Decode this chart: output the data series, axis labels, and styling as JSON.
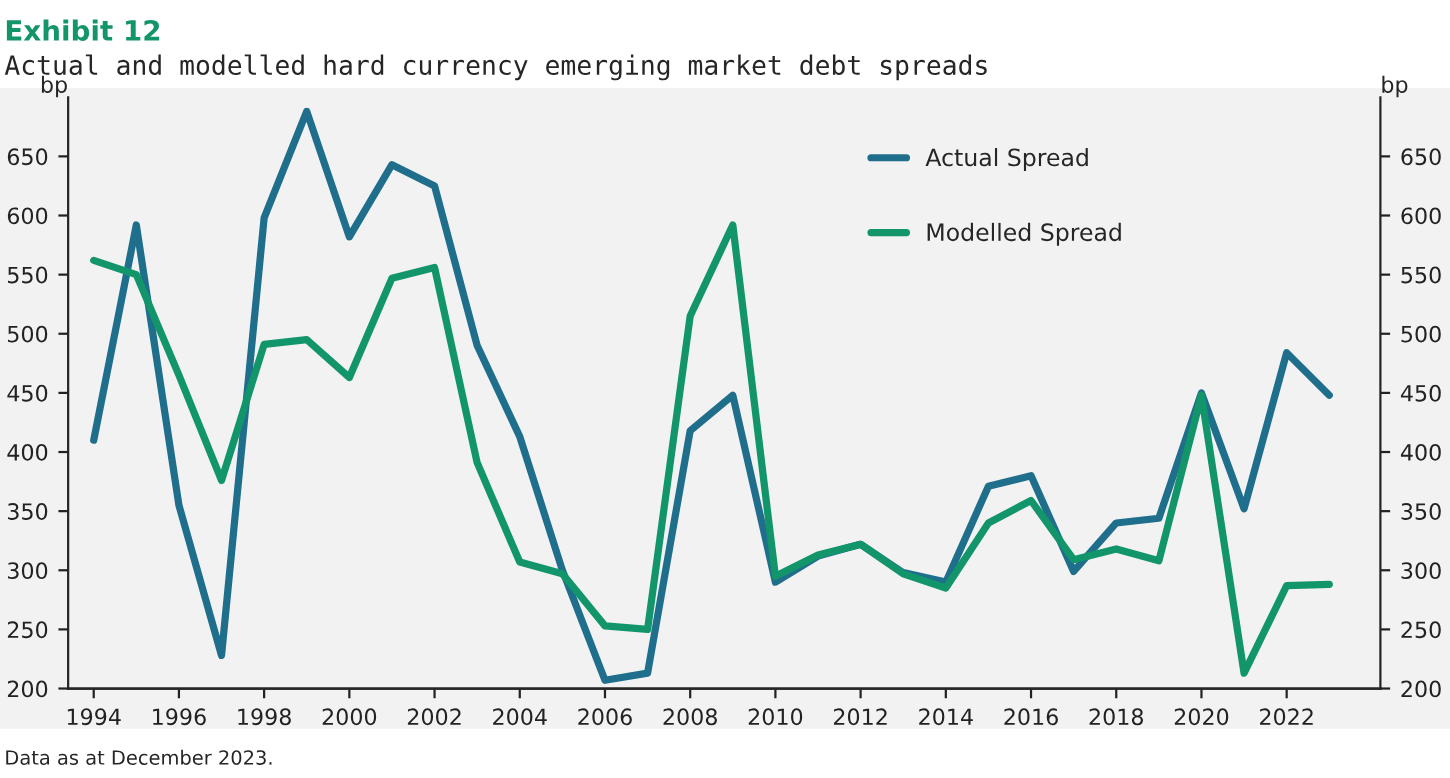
{
  "chart_data": {
    "type": "line",
    "title": "Exhibit 12",
    "subtitle": "Actual and modelled hard currency emerging market debt spreads",
    "ylabel": "bp",
    "y2label": "bp",
    "x": [
      1994,
      1995,
      1996,
      1997,
      1998,
      1999,
      2000,
      2001,
      2002,
      2003,
      2004,
      2005,
      2006,
      2007,
      2008,
      2009,
      2010,
      2011,
      2012,
      2013,
      2014,
      2015,
      2016,
      2017,
      2018,
      2019,
      2020,
      2021,
      2022,
      2023
    ],
    "series": [
      {
        "name": "Actual Spread",
        "color": "#1f6e8c",
        "values": [
          410,
          592,
          355,
          228,
          598,
          688,
          582,
          643,
          625,
          490,
          413,
          300,
          207,
          213,
          418,
          448,
          290,
          312,
          322,
          298,
          290,
          371,
          380,
          299,
          340,
          344,
          450,
          352,
          484,
          448
        ]
      },
      {
        "name": "Modelled Spread",
        "color": "#12956a",
        "values": [
          562,
          550,
          465,
          376,
          491,
          495,
          463,
          547,
          556,
          391,
          307,
          297,
          253,
          250,
          515,
          592,
          295,
          313,
          322,
          297,
          285,
          340,
          359,
          309,
          318,
          308,
          448,
          213,
          287,
          288
        ]
      }
    ],
    "xlim": [
      1993.4,
      2024.2
    ],
    "xticks": [
      1994,
      1996,
      1998,
      2000,
      2002,
      2004,
      2006,
      2008,
      2010,
      2012,
      2014,
      2016,
      2018,
      2020,
      2022
    ],
    "ylim": [
      200,
      700
    ],
    "yticks": [
      200,
      250,
      300,
      350,
      400,
      450,
      500,
      550,
      600,
      650
    ],
    "y2lim": [
      200,
      700
    ],
    "y2ticks": [
      200,
      250,
      300,
      350,
      400,
      450,
      500,
      550,
      600,
      650
    ],
    "grid": false,
    "legend": "top right",
    "line_style": "solid",
    "marker": "none",
    "annotations": [
      "Data as at December 2023."
    ]
  }
}
